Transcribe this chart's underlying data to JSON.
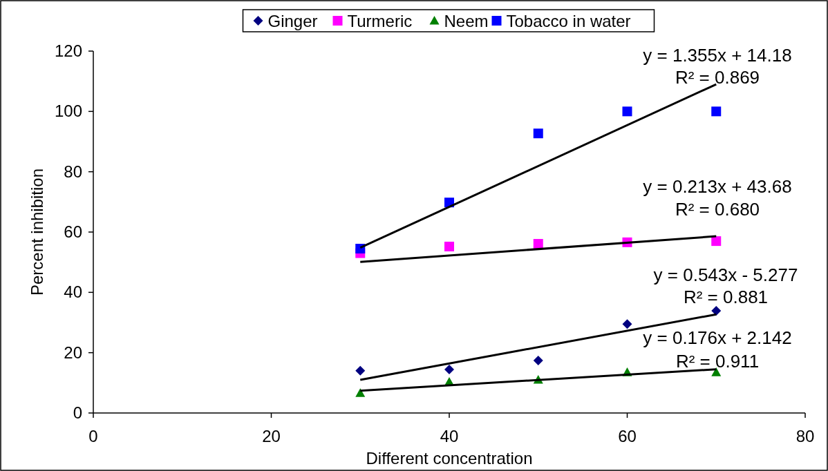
{
  "chart_data": {
    "type": "scatter",
    "xlabel": "Different concentration",
    "ylabel": "Percent inhibition",
    "xlim": [
      0,
      80
    ],
    "xticks": [
      0,
      20,
      40,
      60,
      80
    ],
    "ylim": [
      0,
      120
    ],
    "yticks": [
      0,
      20,
      40,
      60,
      80,
      100,
      120
    ],
    "grid": false,
    "legend": "top",
    "series": [
      {
        "name": "Ginger",
        "color": "#000080",
        "marker": "diamond",
        "x": [
          30,
          40,
          50,
          60,
          70
        ],
        "values": [
          14,
          14.4,
          17.4,
          29.5,
          33.9
        ]
      },
      {
        "name": "Turmeric",
        "color": "#ff00ff",
        "marker": "square",
        "x": [
          30,
          40,
          50,
          60,
          70
        ],
        "values": [
          53,
          55.2,
          56.1,
          56.6,
          57
        ]
      },
      {
        "name": "Neem",
        "color": "#008000",
        "marker": "triangle",
        "x": [
          30,
          40,
          50,
          60,
          70
        ],
        "values": [
          6.6,
          10.3,
          11,
          13.5,
          13.5
        ]
      },
      {
        "name": "Tobacco in water",
        "color": "#0000ff",
        "marker": "square",
        "x": [
          30,
          40,
          50,
          60,
          70
        ],
        "values": [
          54.5,
          69.8,
          92.7,
          100,
          100
        ]
      },
      {
        "type": "line",
        "color": "#000000",
        "marker": "none",
        "x": [
          30,
          70
        ],
        "values": [
          54.8,
          109
        ]
      },
      {
        "type": "line",
        "color": "#000000",
        "marker": "none",
        "x": [
          30,
          70
        ],
        "values": [
          50.1,
          58.6
        ]
      },
      {
        "type": "line",
        "color": "#000000",
        "marker": "none",
        "x": [
          30,
          70
        ],
        "values": [
          11,
          32.7
        ]
      },
      {
        "type": "line",
        "color": "#000000",
        "marker": "none",
        "x": [
          30,
          70
        ],
        "values": [
          7.4,
          14.5
        ]
      }
    ],
    "annotations": [
      "y = 1.355x + 14.18",
      "R² = 0.869",
      "y = 0.213x + 43.68",
      "R² = 0.680",
      "y = 0.543x - 5.277",
      "R² = 0.881",
      "y = 0.176x + 2.142",
      "R² = 0.911"
    ]
  }
}
